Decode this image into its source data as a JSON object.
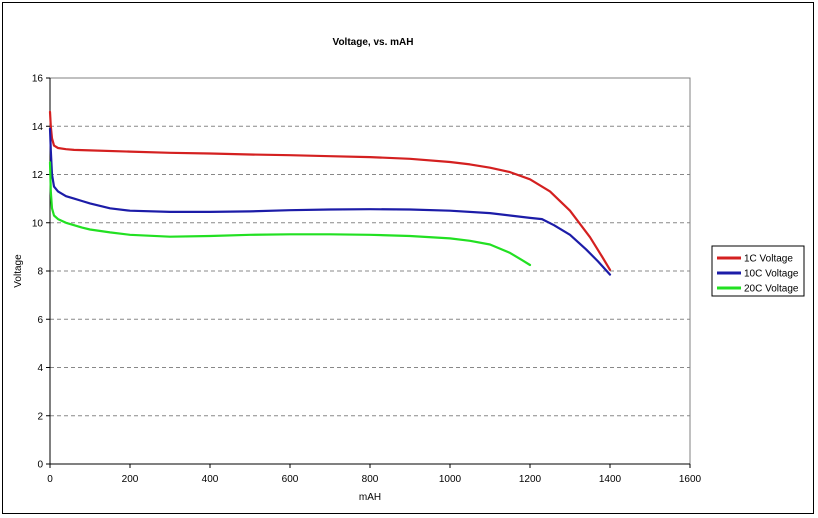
{
  "chart_data": {
    "type": "line",
    "title": "Voltage,  vs. mAH",
    "xlabel": "mAH",
    "ylabel": "Voltage",
    "xlim": [
      0,
      1600
    ],
    "ylim": [
      0,
      16
    ],
    "xticks": [
      0,
      200,
      400,
      600,
      800,
      1000,
      1200,
      1400,
      1600
    ],
    "yticks": [
      0,
      2,
      4,
      6,
      8,
      10,
      12,
      14,
      16
    ],
    "grid": "horizontal dashed",
    "legend_position": "right",
    "series": [
      {
        "name": "1C Voltage",
        "color": "#d42020",
        "x": [
          0,
          2,
          5,
          10,
          20,
          40,
          60,
          100,
          200,
          300,
          400,
          500,
          600,
          700,
          800,
          900,
          1000,
          1050,
          1100,
          1150,
          1200,
          1250,
          1300,
          1350,
          1380,
          1400
        ],
        "y": [
          14.6,
          14.0,
          13.5,
          13.2,
          13.1,
          13.05,
          13.02,
          13.0,
          12.95,
          12.9,
          12.87,
          12.83,
          12.8,
          12.76,
          12.72,
          12.65,
          12.52,
          12.42,
          12.28,
          12.1,
          11.8,
          11.3,
          10.5,
          9.4,
          8.6,
          8.05
        ]
      },
      {
        "name": "10C Voltage",
        "color": "#1c1ca8",
        "x": [
          0,
          2,
          5,
          10,
          20,
          40,
          60,
          80,
          100,
          150,
          200,
          300,
          400,
          500,
          600,
          700,
          800,
          900,
          1000,
          1100,
          1150,
          1200,
          1230,
          1260,
          1300,
          1340,
          1370,
          1400
        ],
        "y": [
          13.9,
          13.0,
          12.0,
          11.5,
          11.3,
          11.1,
          11.0,
          10.9,
          10.8,
          10.6,
          10.5,
          10.45,
          10.45,
          10.47,
          10.52,
          10.55,
          10.56,
          10.55,
          10.5,
          10.4,
          10.3,
          10.2,
          10.15,
          9.9,
          9.5,
          8.9,
          8.4,
          7.85
        ]
      },
      {
        "name": "20C Voltage",
        "color": "#22e022",
        "x": [
          0,
          2,
          5,
          10,
          20,
          40,
          60,
          80,
          100,
          150,
          200,
          300,
          400,
          500,
          600,
          700,
          800,
          900,
          1000,
          1050,
          1100,
          1150,
          1180,
          1200
        ],
        "y": [
          12.5,
          11.3,
          10.6,
          10.3,
          10.15,
          10.0,
          9.9,
          9.8,
          9.72,
          9.6,
          9.5,
          9.42,
          9.45,
          9.5,
          9.52,
          9.52,
          9.5,
          9.45,
          9.35,
          9.25,
          9.1,
          8.75,
          8.45,
          8.25
        ]
      }
    ]
  }
}
